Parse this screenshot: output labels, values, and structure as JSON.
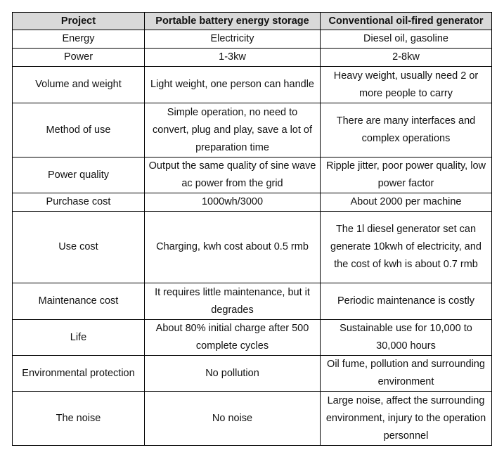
{
  "table": {
    "headers": [
      "Project",
      "Portable battery energy storage",
      "Conventional oil-fired generator"
    ],
    "rows": [
      {
        "key": "energy",
        "project": "Energy",
        "battery": "Electricity",
        "generator": "Diesel oil, gasoline"
      },
      {
        "key": "power",
        "project": "Power",
        "battery": "1-3kw",
        "generator": "2-8kw"
      },
      {
        "key": "volume",
        "project": "Volume and weight",
        "battery": "Light weight, one person can handle",
        "generator": "Heavy weight, usually need 2 or more people to carry"
      },
      {
        "key": "method",
        "project": "Method of use",
        "battery": "Simple operation, no need to convert, plug and play, save a lot of preparation time",
        "generator": "There are many interfaces and complex operations"
      },
      {
        "key": "quality",
        "project": "Power quality",
        "battery": "Output the same quality of sine wave ac power from the grid",
        "generator": "Ripple jitter, poor power quality, low power factor"
      },
      {
        "key": "purchase",
        "project": "Purchase cost",
        "battery": "1000wh/3000",
        "generator": "About 2000 per machine"
      },
      {
        "key": "usecost",
        "project": "Use cost",
        "battery": "Charging, kwh cost about 0.5 rmb",
        "generator": "The 1l diesel generator set can generate 10kwh of electricity, and the cost of kwh is about 0.7 rmb"
      },
      {
        "key": "maint",
        "project": "Maintenance cost",
        "battery": "It requires little maintenance, but it degrades",
        "generator": "Periodic maintenance is costly"
      },
      {
        "key": "life",
        "project": "Life",
        "battery": "About 80% initial charge after 500 complete cycles",
        "generator": "Sustainable use for 10,000 to 30,000 hours"
      },
      {
        "key": "env",
        "project": "Environmental protection",
        "battery": "No pollution",
        "generator": "Oil fume, pollution and surrounding environment"
      },
      {
        "key": "noise",
        "project": "The noise",
        "battery": "No noise",
        "generator": "Large noise, affect the surrounding environment, injury to the operation personnel"
      }
    ]
  }
}
